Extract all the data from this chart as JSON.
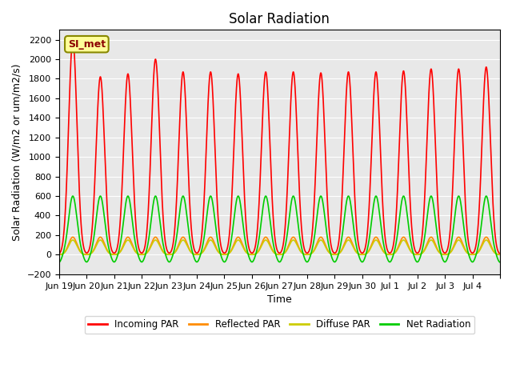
{
  "title": "Solar Radiation",
  "xlabel": "Time",
  "ylabel": "Solar Radiation (W/m2 or um/m2/s)",
  "ylim": [
    -200,
    2300
  ],
  "yticks": [
    -200,
    0,
    200,
    400,
    600,
    800,
    1000,
    1200,
    1400,
    1600,
    1800,
    2000,
    2200
  ],
  "bg_color": "#e8e8e8",
  "legend_labels": [
    "Incoming PAR",
    "Reflected PAR",
    "Diffuse PAR",
    "Net Radiation"
  ],
  "legend_colors": [
    "#ff0000",
    "#ff8c00",
    "#cccc00",
    "#00cc00"
  ],
  "annotation_text": "SI_met",
  "annotation_color": "#8b0000",
  "annotation_bg": "#ffff99",
  "x_tick_positions": [
    0,
    1,
    2,
    3,
    4,
    5,
    6,
    7,
    8,
    9,
    10,
    11,
    12,
    13,
    14,
    15,
    16
  ],
  "x_tick_labels": [
    "Jun 19",
    "Jun 20",
    "Jun 21",
    "Jun 22",
    "Jun 23",
    "Jun 24",
    "Jun 25",
    "Jun 26",
    "Jun 27",
    "Jun 28",
    "Jun 29",
    "Jun 30",
    "Jul 1",
    "Jul 2",
    "Jul 3",
    "Jul 4",
    ""
  ],
  "num_days": 16,
  "incoming_peak_heights": [
    2200,
    1820,
    1850,
    2000,
    1870,
    1870,
    1850,
    1870,
    1870,
    1860,
    1870,
    1870,
    1880,
    1900,
    1900,
    1920
  ],
  "net_rad_peak": 600,
  "reflected_peak": 180,
  "diffuse_peak": 150,
  "nighttime_net": -80,
  "line_width": 1.2
}
